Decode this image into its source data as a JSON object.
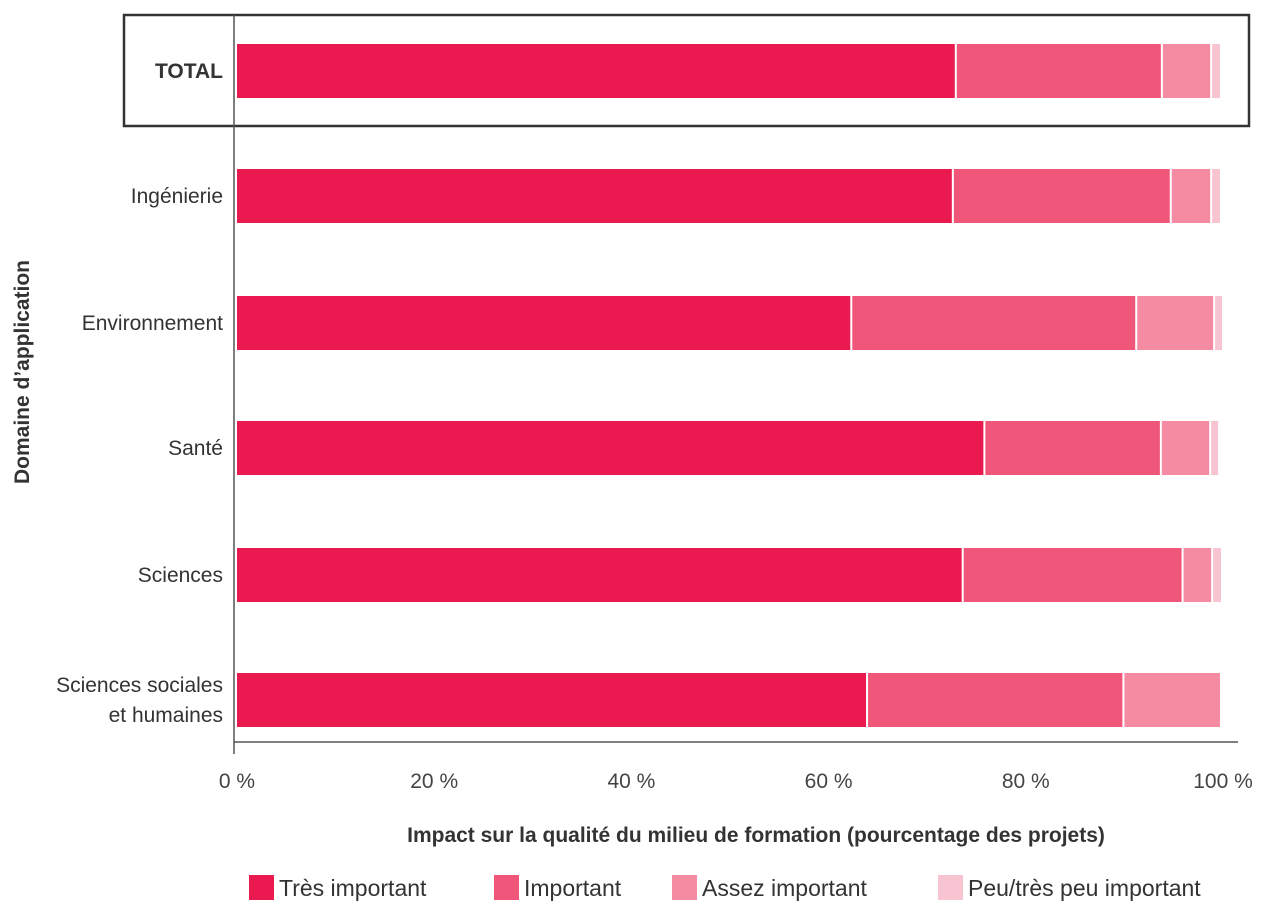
{
  "chart_data": {
    "type": "bar",
    "orientation": "horizontal",
    "stacked": true,
    "categories": [
      "TOTAL",
      "Ingénierie",
      "Environnement",
      "Santé",
      "Sciences",
      "Sciences sociales\net humaines"
    ],
    "highlighted_category": "TOTAL",
    "series": [
      {
        "name": "Très important",
        "color": "#ea1a50",
        "values": [
          73,
          72.7,
          62.4,
          75.9,
          73.7,
          64
        ]
      },
      {
        "name": "Important",
        "color": "#f0567a",
        "values": [
          20.9,
          22.1,
          28.9,
          17.9,
          22.3,
          26
        ]
      },
      {
        "name": "Assez important",
        "color": "#f48ba3",
        "values": [
          5,
          4.1,
          7.9,
          5,
          3,
          9.9
        ]
      },
      {
        "name": "Peu/très peu important",
        "color": "#f8c4d1",
        "values": [
          1,
          1,
          0.9,
          0.9,
          1,
          0
        ]
      }
    ],
    "xlabel": "Impact sur la qualité du milieu de formation (pourcentage des projets)",
    "ylabel": "Domaine d’application",
    "xlim": [
      0,
      100
    ],
    "xticks": [
      "0 %",
      "20 %",
      "40 %",
      "60 %",
      "80 %",
      "100 %"
    ],
    "legend_position": "bottom",
    "grid": false
  }
}
